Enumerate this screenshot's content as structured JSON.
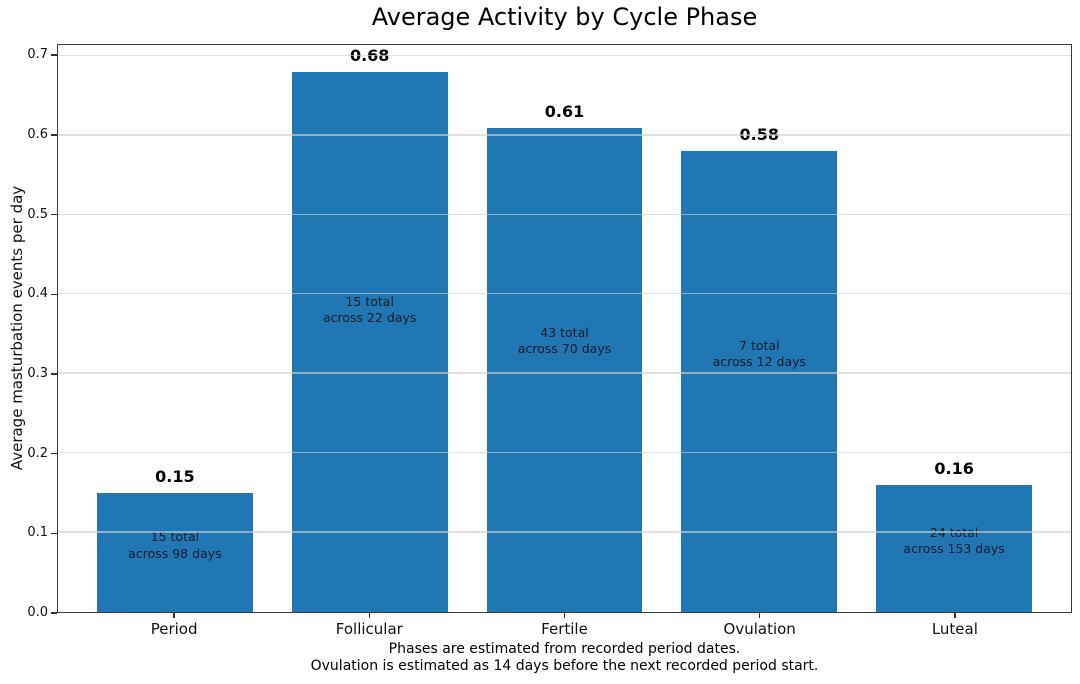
{
  "chart_data": {
    "type": "bar",
    "title": "Average Activity by Cycle Phase",
    "ylabel": "Average masturbation events per day",
    "xlabel_lines": [
      "Phases are estimated from recorded period dates.",
      "Ovulation is estimated as 14 days before the next recorded period start."
    ],
    "categories": [
      "Period",
      "Follicular",
      "Fertile",
      "Ovulation",
      "Luteal"
    ],
    "values": [
      0.15,
      0.68,
      0.61,
      0.58,
      0.16
    ],
    "bars": [
      {
        "category": "Period",
        "value": 0.15,
        "value_label": "0.15",
        "total_events": 15,
        "days": 98,
        "annotation_lines": [
          "15 total",
          "across 98 days"
        ]
      },
      {
        "category": "Follicular",
        "value": 0.68,
        "value_label": "0.68",
        "total_events": 15,
        "days": 22,
        "annotation_lines": [
          "15 total",
          "across 22 days"
        ]
      },
      {
        "category": "Fertile",
        "value": 0.61,
        "value_label": "0.61",
        "total_events": 43,
        "days": 70,
        "annotation_lines": [
          "43 total",
          "across 70 days"
        ]
      },
      {
        "category": "Ovulation",
        "value": 0.58,
        "value_label": "0.58",
        "total_events": 7,
        "days": 12,
        "annotation_lines": [
          "7 total",
          "across 12 days"
        ]
      },
      {
        "category": "Luteal",
        "value": 0.16,
        "value_label": "0.16",
        "total_events": 24,
        "days": 153,
        "annotation_lines": [
          "24 total",
          "across 153 days"
        ]
      }
    ],
    "yticks": [
      0.0,
      0.1,
      0.2,
      0.3,
      0.4,
      0.5,
      0.6,
      0.7
    ],
    "ytick_labels": [
      "0.0",
      "0.1",
      "0.2",
      "0.3",
      "0.4",
      "0.5",
      "0.6",
      "0.7"
    ],
    "ylim": [
      0,
      0.714
    ],
    "grid": true,
    "legend": null,
    "colors": {
      "bar": "#1f77b4",
      "annotation_text": "#0d1b2a",
      "grid_line": "#dfdfdf",
      "spine": "#3a3a3a",
      "value_label": "#000000"
    }
  }
}
